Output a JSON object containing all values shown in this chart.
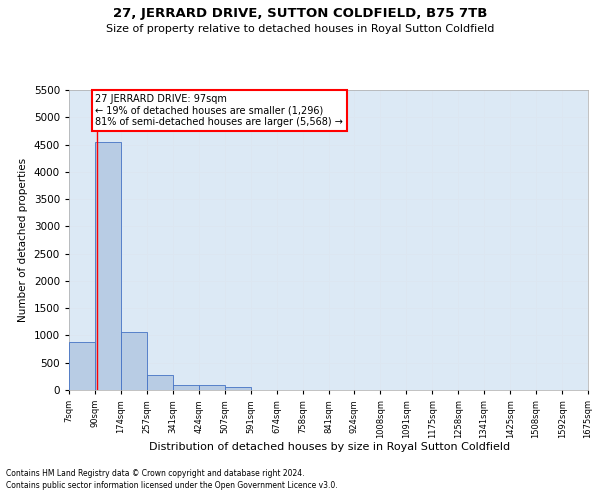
{
  "title": "27, JERRARD DRIVE, SUTTON COLDFIELD, B75 7TB",
  "subtitle": "Size of property relative to detached houses in Royal Sutton Coldfield",
  "xlabel": "Distribution of detached houses by size in Royal Sutton Coldfield",
  "ylabel": "Number of detached properties",
  "footnote1": "Contains HM Land Registry data © Crown copyright and database right 2024.",
  "footnote2": "Contains public sector information licensed under the Open Government Licence v3.0.",
  "annotation_title": "27 JERRARD DRIVE: 97sqm",
  "annotation_line1": "← 19% of detached houses are smaller (1,296)",
  "annotation_line2": "81% of semi-detached houses are larger (5,568) →",
  "property_size": 97,
  "bin_edges": [
    7,
    90,
    174,
    257,
    341,
    424,
    507,
    591,
    674,
    758,
    841,
    924,
    1008,
    1091,
    1175,
    1258,
    1341,
    1425,
    1508,
    1592,
    1675
  ],
  "bin_labels": [
    "7sqm",
    "90sqm",
    "174sqm",
    "257sqm",
    "341sqm",
    "424sqm",
    "507sqm",
    "591sqm",
    "674sqm",
    "758sqm",
    "841sqm",
    "924sqm",
    "1008sqm",
    "1091sqm",
    "1175sqm",
    "1258sqm",
    "1341sqm",
    "1425sqm",
    "1508sqm",
    "1592sqm",
    "1675sqm"
  ],
  "bar_heights": [
    880,
    4550,
    1060,
    280,
    100,
    90,
    60,
    0,
    0,
    0,
    0,
    0,
    0,
    0,
    0,
    0,
    0,
    0,
    0,
    0
  ],
  "bar_color": "#b8cce4",
  "bar_edge_color": "#4472c4",
  "grid_color": "#dce6f1",
  "red_line_x": 97,
  "annotation_box_color": "#ffffff",
  "annotation_box_edge_color": "#ff0000",
  "ylim": [
    0,
    5500
  ],
  "yticks": [
    0,
    500,
    1000,
    1500,
    2000,
    2500,
    3000,
    3500,
    4000,
    4500,
    5000,
    5500
  ],
  "bg_color": "#ffffff",
  "plot_bg_color": "#dce9f5",
  "title_fontsize": 9.5,
  "subtitle_fontsize": 8,
  "ylabel_fontsize": 7.5,
  "xlabel_fontsize": 8,
  "ytick_fontsize": 7.5,
  "xtick_fontsize": 6,
  "footnote_fontsize": 5.5,
  "annotation_fontsize": 7
}
